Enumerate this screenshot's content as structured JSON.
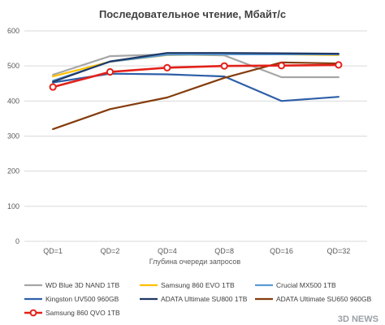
{
  "chart_data": {
    "type": "line",
    "title": "Последовательное чтение, Мбайт/с",
    "xlabel": "Глубина очереди запросов",
    "ylabel": "",
    "categories": [
      "QD=1",
      "QD=2",
      "QD=4",
      "QD=8",
      "QD=16",
      "QD=32"
    ],
    "ylim": [
      0,
      600
    ],
    "yticks": [
      "0",
      "100",
      "200",
      "300",
      "400",
      "500",
      "600"
    ],
    "grid": true,
    "legend_position": "bottom",
    "series": [
      {
        "name": "WD Blue 3D NAND 1TB",
        "color": "#a6a6a6",
        "values": [
          475,
          528,
          533,
          530,
          468,
          468
        ]
      },
      {
        "name": "Samsung 860 EVO 1TB",
        "color": "#ffc000",
        "values": [
          470,
          512,
          531,
          533,
          533,
          531
        ]
      },
      {
        "name": "Crucial MX500 1TB",
        "color": "#5b9bd5",
        "values": [
          458,
          512,
          532,
          533,
          533,
          533
        ]
      },
      {
        "name": "Kingston UV500 960GB",
        "color": "#2e5fa8",
        "values": [
          453,
          478,
          476,
          470,
          400,
          412
        ]
      },
      {
        "name": "ADATA Ultimate SU800 1TB",
        "color": "#1f3864",
        "values": [
          455,
          513,
          537,
          537,
          536,
          535
        ]
      },
      {
        "name": "ADATA Ultimate SU650 960GB",
        "color": "#843c0c",
        "values": [
          320,
          377,
          410,
          466,
          510,
          507
        ]
      },
      {
        "name": "Samsung 860 QVO 1TB",
        "color": "#e32119",
        "marker": "circle",
        "values": [
          440,
          483,
          495,
          500,
          501,
          503
        ]
      }
    ]
  },
  "watermark": {
    "text": "3D NEWS"
  }
}
